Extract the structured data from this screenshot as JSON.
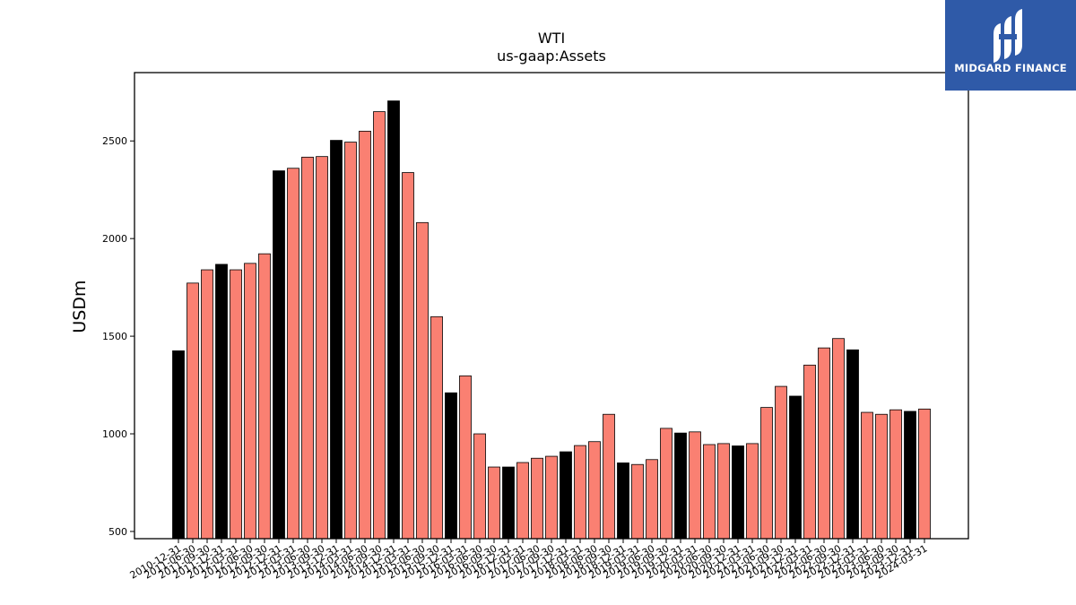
{
  "chart_data": {
    "type": "bar",
    "title": "WTI",
    "subtitle": "us-gaap:Assets",
    "xlabel": "",
    "ylabel": "USDm",
    "ylim": [
      463,
      2850
    ],
    "yticks": [
      500,
      1000,
      1500,
      2000,
      2500
    ],
    "grid": false,
    "categories": [
      "2010-12-31",
      "2011-06-30",
      "2011-09-30",
      "2011-12-31",
      "2012-03-31",
      "2012-06-30",
      "2012-09-30",
      "2012-12-31",
      "2013-03-31",
      "2013-06-30",
      "2013-09-30",
      "2013-12-31",
      "2014-03-31",
      "2014-06-30",
      "2014-09-30",
      "2014-12-31",
      "2015-03-31",
      "2015-06-30",
      "2015-09-30",
      "2015-12-31",
      "2016-03-31",
      "2016-06-30",
      "2016-09-30",
      "2016-12-31",
      "2017-03-31",
      "2017-06-30",
      "2017-09-30",
      "2017-12-31",
      "2018-03-31",
      "2018-06-30",
      "2018-09-30",
      "2018-12-31",
      "2019-03-31",
      "2019-06-30",
      "2019-09-30",
      "2019-12-31",
      "2020-03-31",
      "2020-06-30",
      "2020-09-30",
      "2020-12-31",
      "2021-03-31",
      "2021-06-30",
      "2021-09-30",
      "2021-12-31",
      "2022-03-31",
      "2022-06-30",
      "2022-09-30",
      "2022-12-31",
      "2023-03-31",
      "2023-06-30",
      "2023-09-30",
      "2023-12-31",
      "2024-03-31"
    ],
    "values": [
      1425,
      1772,
      1840,
      1868,
      1840,
      1873,
      1922,
      2347,
      2360,
      2417,
      2420,
      2503,
      2494,
      2550,
      2650,
      2705,
      2338,
      2082,
      1600,
      1210,
      1297,
      1000,
      830,
      830,
      853,
      875,
      885,
      908,
      940,
      960,
      1100,
      851,
      843,
      868,
      1028,
      1004,
      1010,
      945,
      950,
      938,
      950,
      1135,
      1243,
      1193,
      1352,
      1440,
      1488,
      1430,
      1110,
      1100,
      1123,
      1115,
      1127
    ],
    "year_end": [
      true,
      false,
      false,
      true,
      false,
      false,
      false,
      true,
      false,
      false,
      false,
      true,
      false,
      false,
      false,
      true,
      false,
      false,
      false,
      true,
      false,
      false,
      false,
      true,
      false,
      false,
      false,
      true,
      false,
      false,
      false,
      true,
      false,
      false,
      false,
      true,
      false,
      false,
      false,
      true,
      false,
      false,
      false,
      true,
      false,
      false,
      false,
      true,
      false,
      false,
      false,
      true,
      false
    ],
    "colors": {
      "year_end": "#000000",
      "quarter": "#fa8072",
      "edge": "#000000"
    }
  },
  "logo": {
    "text": "MIDGARD FINANCE",
    "background": "#2f5aa8"
  }
}
